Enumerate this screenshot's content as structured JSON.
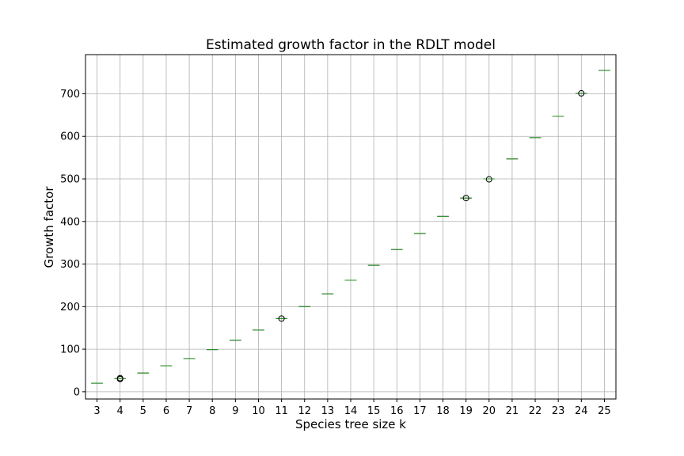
{
  "chart_data": {
    "type": "box",
    "title": "Estimated growth factor in the RDLT model",
    "xlabel": "Species tree size k",
    "ylabel": "Growth factor",
    "categories": [
      "3",
      "4",
      "5",
      "6",
      "7",
      "8",
      "9",
      "10",
      "11",
      "12",
      "13",
      "14",
      "15",
      "16",
      "17",
      "18",
      "19",
      "20",
      "21",
      "22",
      "23",
      "24",
      "25"
    ],
    "medians": [
      20,
      31,
      44,
      61,
      78,
      99,
      121,
      145,
      172,
      200,
      230,
      262,
      297,
      334,
      372,
      412,
      455,
      500,
      547,
      597,
      647,
      701,
      755
    ],
    "outliers": [
      [],
      [
        30,
        32
      ],
      [],
      [],
      [],
      [],
      [],
      [],
      [
        172
      ],
      [],
      [],
      [],
      [],
      [],
      [],
      [],
      [
        455
      ],
      [
        499
      ],
      [],
      [],
      [],
      [
        701
      ],
      []
    ],
    "ylim": [
      -17,
      792
    ],
    "yticks": [
      0,
      100,
      200,
      300,
      400,
      500,
      600,
      700
    ],
    "grid": true
  }
}
